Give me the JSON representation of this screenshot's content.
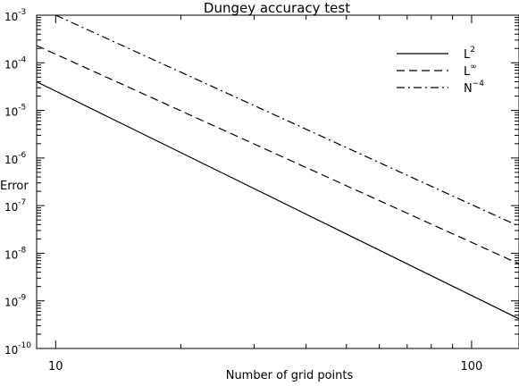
{
  "chart_data": {
    "type": "line",
    "title": "Dungey accuracy test",
    "xlabel": "Number of grid points",
    "ylabel": "Error",
    "xscale": "log",
    "yscale": "log",
    "xlim": [
      9,
      130
    ],
    "ylim": [
      1e-10,
      0.001
    ],
    "x_ticks": [
      {
        "value": 10,
        "label": "10"
      },
      {
        "value": 100,
        "label": "100"
      }
    ],
    "y_ticks": [
      {
        "value": 1e-10,
        "base": "10",
        "exp": "-10"
      },
      {
        "value": 1e-09,
        "base": "10",
        "exp": "-9"
      },
      {
        "value": 1e-08,
        "base": "10",
        "exp": "-8"
      },
      {
        "value": 1e-07,
        "base": "10",
        "exp": "-7"
      },
      {
        "value": 1e-06,
        "base": "10",
        "exp": "-6"
      },
      {
        "value": 1e-05,
        "base": "10",
        "exp": "-5"
      },
      {
        "value": 0.0001,
        "base": "10",
        "exp": "-4"
      },
      {
        "value": 0.001,
        "base": "10",
        "exp": "-3"
      }
    ],
    "grid": false,
    "legend_position": "top-right",
    "series": [
      {
        "name": "L²",
        "legend_base": "L",
        "legend_sup": "2",
        "style": "solid",
        "color": "#000000",
        "x": [
          9,
          130
        ],
        "y": [
          4e-05,
          4.2e-10
        ]
      },
      {
        "name": "L∞",
        "legend_base": "L",
        "legend_sup": "∞",
        "style": "dashed",
        "color": "#000000",
        "x": [
          9,
          130
        ],
        "y": [
          0.00023,
          6e-09
        ]
      },
      {
        "name": "N⁻⁴",
        "legend_base": "N",
        "legend_sup": "−4",
        "style": "dashdot",
        "color": "#000000",
        "x": [
          10,
          130
        ],
        "y": [
          0.001,
          3.7e-08
        ]
      }
    ]
  }
}
